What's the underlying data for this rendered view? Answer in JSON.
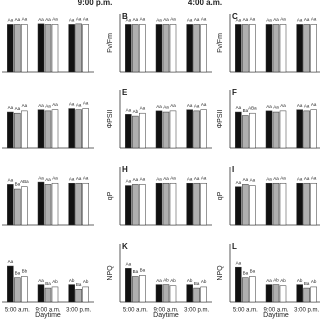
{
  "chart_data": [
    {
      "type": "bar",
      "categories": [
        null,
        null,
        null
      ],
      "ylim": [
        0,
        1
      ],
      "series": [
        {
          "color": "#111111",
          "values": [
            0.82,
            0.83,
            0.82
          ],
          "letters": [
            "Aa",
            "Aa",
            "Aa"
          ]
        },
        {
          "color": "#b0b0b0",
          "values": [
            0.82,
            0.82,
            0.83
          ],
          "letters": [
            "Aa",
            "Aa",
            "Aa"
          ]
        },
        {
          "color": "#ffffff",
          "values": [
            0.82,
            0.82,
            0.82
          ],
          "letters": [
            "Aa",
            "Aa",
            "Aa"
          ]
        }
      ]
    },
    {
      "type": "bar",
      "label": "B",
      "title": "9:00 p.m.",
      "ylabel": "Fv/Fm",
      "categories": [
        null,
        null,
        null
      ],
      "ylim": [
        0,
        1
      ],
      "series": [
        {
          "color": "#111111",
          "values": [
            0.82,
            0.82,
            0.82
          ],
          "letters": [
            "Aa",
            "Aa",
            "Aa"
          ]
        },
        {
          "color": "#b0b0b0",
          "values": [
            0.82,
            0.82,
            0.82
          ],
          "letters": [
            "Aa",
            "Aa",
            "Aa"
          ]
        },
        {
          "color": "#ffffff",
          "values": [
            0.82,
            0.82,
            0.82
          ],
          "letters": [
            "Aa",
            "Aa",
            "Aa"
          ]
        }
      ]
    },
    {
      "type": "bar",
      "label": "C",
      "title": "4:00 a.m.",
      "ylabel": "Fv/Fm",
      "categories": [
        null,
        null,
        null
      ],
      "ylim": [
        0,
        1
      ],
      "series": [
        {
          "color": "#111111",
          "values": [
            0.82,
            0.82,
            0.82
          ],
          "letters": [
            "Aa",
            "Aa",
            "Aa"
          ]
        },
        {
          "color": "#b0b0b0",
          "values": [
            0.82,
            0.82,
            0.82
          ],
          "letters": [
            "Aa",
            "Aa",
            "Aa"
          ]
        },
        {
          "color": "#ffffff",
          "values": [
            0.82,
            0.82,
            0.82
          ],
          "letters": [
            "Aa",
            "Aa",
            "Aa"
          ]
        }
      ]
    },
    {
      "type": "bar",
      "categories": [
        null,
        null,
        null
      ],
      "ylim": [
        0,
        1
      ],
      "series": [
        {
          "color": "#111111",
          "values": [
            0.62,
            0.66,
            0.68
          ],
          "letters": [
            "Aa",
            "Aa",
            "Aa"
          ]
        },
        {
          "color": "#b0b0b0",
          "values": [
            0.6,
            0.64,
            0.66
          ],
          "letters": [
            "Aa",
            "Aa",
            "Aa"
          ]
        },
        {
          "color": "#ffffff",
          "values": [
            0.64,
            0.66,
            0.68
          ],
          "letters": [
            "Aa",
            "Aa",
            "Aa"
          ]
        }
      ]
    },
    {
      "type": "bar",
      "label": "E",
      "ylabel": "ΦPSII",
      "categories": [
        null,
        null,
        null
      ],
      "ylim": [
        0,
        1
      ],
      "series": [
        {
          "color": "#111111",
          "values": [
            0.58,
            0.64,
            0.66
          ],
          "letters": [
            "Aa",
            "Aa",
            "Aa"
          ]
        },
        {
          "color": "#b0b0b0",
          "values": [
            0.55,
            0.62,
            0.64
          ],
          "letters": [
            "Ab",
            "Aa",
            "Aa"
          ]
        },
        {
          "color": "#ffffff",
          "values": [
            0.6,
            0.64,
            0.66
          ],
          "letters": [
            "Aa",
            "Aa",
            "Aa"
          ]
        }
      ]
    },
    {
      "type": "bar",
      "label": "F",
      "ylabel": "ΦPSII",
      "categories": [
        null,
        null,
        null
      ],
      "ylim": [
        0,
        1
      ],
      "series": [
        {
          "color": "#111111",
          "values": [
            0.62,
            0.64,
            0.66
          ],
          "letters": [
            "Aa",
            "Aa",
            "Aa"
          ]
        },
        {
          "color": "#b0b0b0",
          "values": [
            0.56,
            0.62,
            0.64
          ],
          "letters": [
            "Ba",
            "Aa",
            "Aa"
          ]
        },
        {
          "color": "#ffffff",
          "values": [
            0.6,
            0.64,
            0.66
          ],
          "letters": [
            "ABa",
            "Aa",
            "Aa"
          ]
        }
      ]
    },
    {
      "type": "bar",
      "categories": [
        null,
        null,
        null
      ],
      "ylim": [
        0,
        1
      ],
      "series": [
        {
          "color": "#111111",
          "values": [
            0.7,
            0.74,
            0.72
          ],
          "letters": [
            "Aa",
            "Aa",
            "Aa"
          ]
        },
        {
          "color": "#b0b0b0",
          "values": [
            0.62,
            0.7,
            0.72
          ],
          "letters": [
            "Ba",
            "Aa",
            "Aa"
          ]
        },
        {
          "color": "#ffffff",
          "values": [
            0.66,
            0.72,
            0.72
          ],
          "letters": [
            "ABa",
            "Aa",
            "Aa"
          ]
        }
      ]
    },
    {
      "type": "bar",
      "label": "H",
      "ylabel": "qP",
      "categories": [
        null,
        null,
        null
      ],
      "ylim": [
        0,
        1
      ],
      "series": [
        {
          "color": "#111111",
          "values": [
            0.68,
            0.72,
            0.72
          ],
          "letters": [
            "Aa",
            "Aa",
            "Aa"
          ]
        },
        {
          "color": "#b0b0b0",
          "values": [
            0.7,
            0.72,
            0.72
          ],
          "letters": [
            "Aa",
            "Aa",
            "Aa"
          ]
        },
        {
          "color": "#ffffff",
          "values": [
            0.7,
            0.72,
            0.72
          ],
          "letters": [
            "Aa",
            "Aa",
            "Aa"
          ]
        }
      ]
    },
    {
      "type": "bar",
      "label": "I",
      "ylabel": "qP",
      "categories": [
        null,
        null,
        null
      ],
      "ylim": [
        0,
        1
      ],
      "series": [
        {
          "color": "#111111",
          "values": [
            0.66,
            0.72,
            0.72
          ],
          "letters": [
            "Aa",
            "Aa",
            "Aa"
          ]
        },
        {
          "color": "#b0b0b0",
          "values": [
            0.7,
            0.72,
            0.72
          ],
          "letters": [
            "Aa",
            "Aa",
            "Aa"
          ]
        },
        {
          "color": "#ffffff",
          "values": [
            0.68,
            0.72,
            0.72
          ],
          "letters": [
            "Aa",
            "Aa",
            "Aa"
          ]
        }
      ]
    },
    {
      "type": "bar",
      "categories": [
        "5:00 a.m.",
        "9:00 a.m.",
        "3:00 p.m."
      ],
      "xlabel": "Daytime",
      "ylim": [
        0,
        1
      ],
      "series": [
        {
          "color": "#111111",
          "values": [
            0.62,
            0.3,
            0.3
          ],
          "letters": [
            "Aa",
            "Aa",
            "Ab"
          ]
        },
        {
          "color": "#b0b0b0",
          "values": [
            0.42,
            0.24,
            0.22
          ],
          "letters": [
            "Ba",
            "Ba",
            "Ba"
          ]
        },
        {
          "color": "#ffffff",
          "values": [
            0.44,
            0.26,
            0.26
          ],
          "letters": [
            "Bb",
            "Ab",
            "Ab"
          ]
        }
      ]
    },
    {
      "type": "bar",
      "label": "K",
      "ylabel": "NPQ",
      "categories": [
        "5:00 a.m.",
        "9:00 a.m.",
        "3:00 p.m."
      ],
      "xlabel": "Daytime",
      "ylim": [
        0,
        1
      ],
      "series": [
        {
          "color": "#111111",
          "values": [
            0.58,
            0.3,
            0.3
          ],
          "letters": [
            "Aa",
            "Aa",
            "Ab"
          ]
        },
        {
          "color": "#b0b0b0",
          "values": [
            0.44,
            0.3,
            0.24
          ],
          "letters": [
            "Ba",
            "Ab",
            "Ba"
          ]
        },
        {
          "color": "#ffffff",
          "values": [
            0.46,
            0.28,
            0.26
          ],
          "letters": [
            "Ba",
            "Ab",
            "Ab"
          ]
        }
      ]
    },
    {
      "type": "bar",
      "label": "L",
      "ylabel": "NPQ",
      "categories": [
        "5:00 a.m.",
        "9:00 a.m.",
        "3:00 p.m."
      ],
      "xlabel": "Daytime",
      "ylim": [
        0,
        1
      ],
      "series": [
        {
          "color": "#111111",
          "values": [
            0.6,
            0.3,
            0.3
          ],
          "letters": [
            "Aa",
            "Aa",
            "Ab"
          ]
        },
        {
          "color": "#b0b0b0",
          "values": [
            0.42,
            0.3,
            0.24
          ],
          "letters": [
            "Ba",
            "Ab",
            "Ba"
          ]
        },
        {
          "color": "#ffffff",
          "values": [
            0.44,
            0.28,
            0.26
          ],
          "letters": [
            "Ba",
            "Ab",
            "Ab"
          ]
        }
      ]
    }
  ]
}
